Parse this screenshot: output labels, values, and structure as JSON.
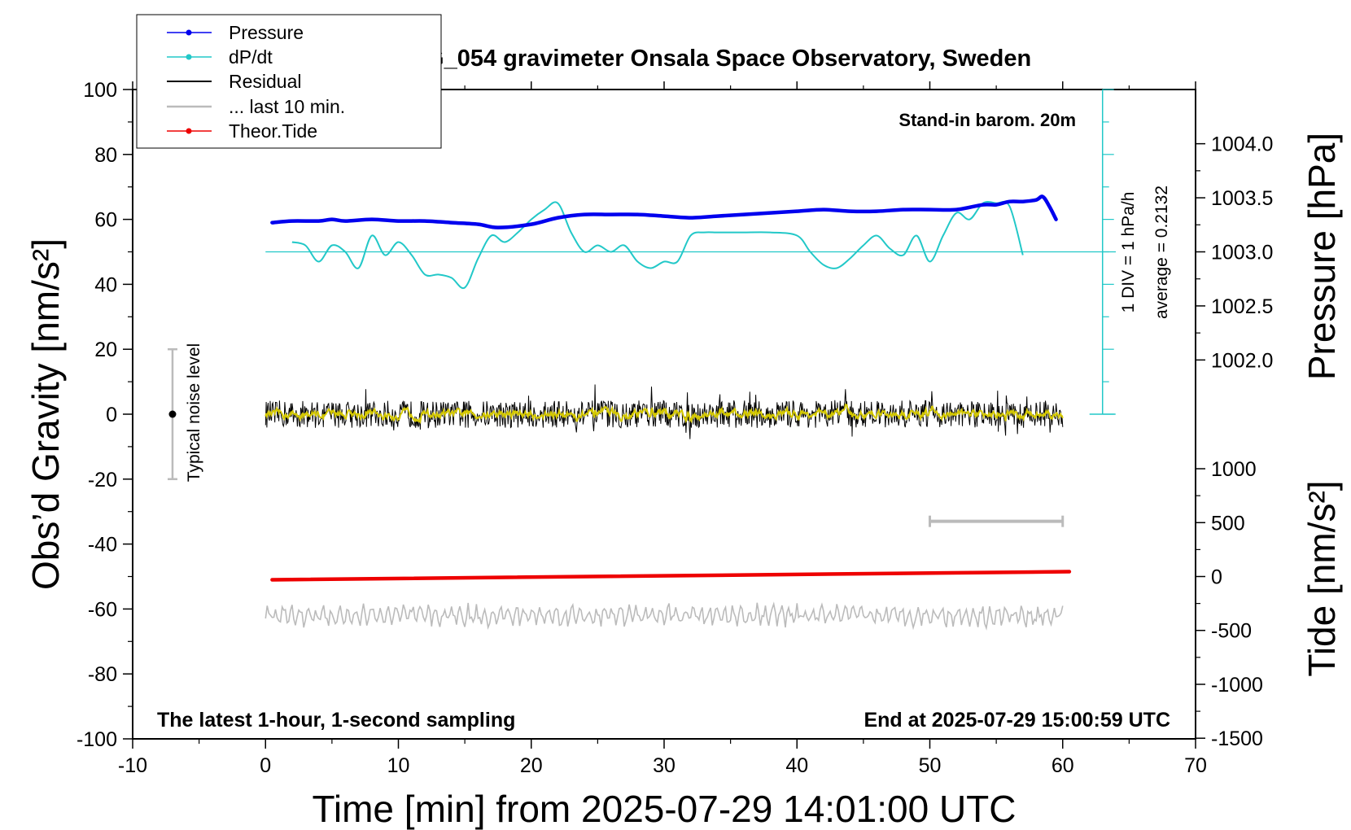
{
  "chart_data": {
    "type": "line",
    "title": "SCG_054 gravimeter Onsala Space Observatory, Sweden",
    "xlabel": "Time [min] from 2025-07-29 14:01:00 UTC",
    "ylabel_left": "Obs’d Gravity [nm/s²]",
    "ylabel_right_pressure": "Pressure [hPa]",
    "ylabel_right_tide": "Tide [nm/s²]",
    "xlim": [
      -10,
      70
    ],
    "ylim_left": [
      -100,
      100
    ],
    "x_ticks": [
      "-10",
      "0",
      "10",
      "20",
      "30",
      "40",
      "50",
      "60",
      "70"
    ],
    "y_ticks_left": [
      "100",
      "80",
      "60",
      "40",
      "20",
      "0",
      "-20",
      "-40",
      "-60",
      "-80",
      "-100"
    ],
    "pressure_ticks": [
      "1004.0",
      "1003.5",
      "1003.0",
      "1002.5",
      "1002.0"
    ],
    "tide_ticks": [
      "1000",
      "500",
      "0",
      "-500",
      "-1000",
      "-1500"
    ],
    "annotations": {
      "stand_in": "Stand-in barom. 20m",
      "sampling": "The latest 1-hour, 1-second sampling",
      "end_at": "End at 2025-07-29 15:00:59 UTC",
      "noise": "Typical noise level",
      "div": "1 DIV = 1 hPa/h",
      "average": "average = 0.2132"
    },
    "legend": {
      "position": "top-left",
      "entries": [
        "Pressure",
        "dP/dt",
        "Residual",
        "... last 10 min.",
        "Theor.Tide"
      ]
    },
    "colors": {
      "pressure": "#0000ee",
      "dpdt": "#22c8c8",
      "residual": "#000000",
      "residual_smooth": "#d4c800",
      "last10": "#bbbbbb",
      "tide": "#ee0000"
    },
    "series": [
      {
        "name": "Pressure",
        "x": [
          0.5,
          2,
          4,
          5,
          6,
          8,
          10,
          12,
          14,
          16,
          17.5,
          20,
          22,
          24,
          26,
          28,
          30,
          32,
          34,
          36,
          38,
          40,
          42,
          44,
          46,
          48,
          50,
          52,
          54,
          55,
          56,
          57,
          58,
          58.5,
          59,
          59.5
        ],
        "y": [
          59,
          59.5,
          59.5,
          60,
          59.5,
          60,
          59.5,
          59.5,
          59,
          58.5,
          57.5,
          58.5,
          60.5,
          61.5,
          61.5,
          61.5,
          61,
          60.5,
          61,
          61.5,
          62,
          62.5,
          63,
          62.5,
          62.5,
          63,
          63,
          63,
          64.5,
          64.5,
          65.5,
          65.5,
          66,
          67,
          64,
          60
        ]
      },
      {
        "name": "dP/dt",
        "x": [
          2,
          3,
          4,
          5,
          6,
          7,
          8,
          9,
          10,
          11,
          12,
          13,
          14,
          15,
          16,
          17,
          18,
          19,
          20,
          21,
          22,
          23,
          24,
          25,
          26,
          27,
          28,
          29,
          30,
          31,
          32,
          33,
          34,
          35,
          36,
          38,
          40,
          41,
          42,
          43,
          44,
          45,
          46,
          47,
          48,
          49,
          50,
          51,
          52,
          53,
          54,
          55,
          56,
          57
        ],
        "y": [
          53,
          52,
          47,
          52,
          50,
          45,
          55,
          49,
          53,
          49,
          43,
          43,
          42,
          39,
          48,
          55,
          53,
          56,
          60,
          63,
          65,
          56,
          50,
          52,
          50,
          52,
          47,
          45,
          47,
          47,
          55,
          56,
          56,
          56,
          56,
          56,
          55,
          50,
          46,
          45,
          48,
          52,
          55,
          51,
          49,
          55,
          47,
          55,
          62,
          60,
          65,
          65,
          64,
          49
        ]
      },
      {
        "name": "Residual",
        "x_range": [
          0,
          60
        ],
        "y_center": 0,
        "y_amplitude": 7
      },
      {
        "name": "... last 10 min.",
        "x_range": [
          50,
          60
        ],
        "y": [
          -33,
          -33
        ]
      },
      {
        "name": "Theor.Tide",
        "x": [
          0.5,
          60.5
        ],
        "y": [
          -51,
          -48.5
        ]
      },
      {
        "name": "Noise reference",
        "x": -7,
        "y": 0,
        "y_error": 20
      }
    ],
    "baselines": {
      "dpdt_zero": 50
    }
  }
}
